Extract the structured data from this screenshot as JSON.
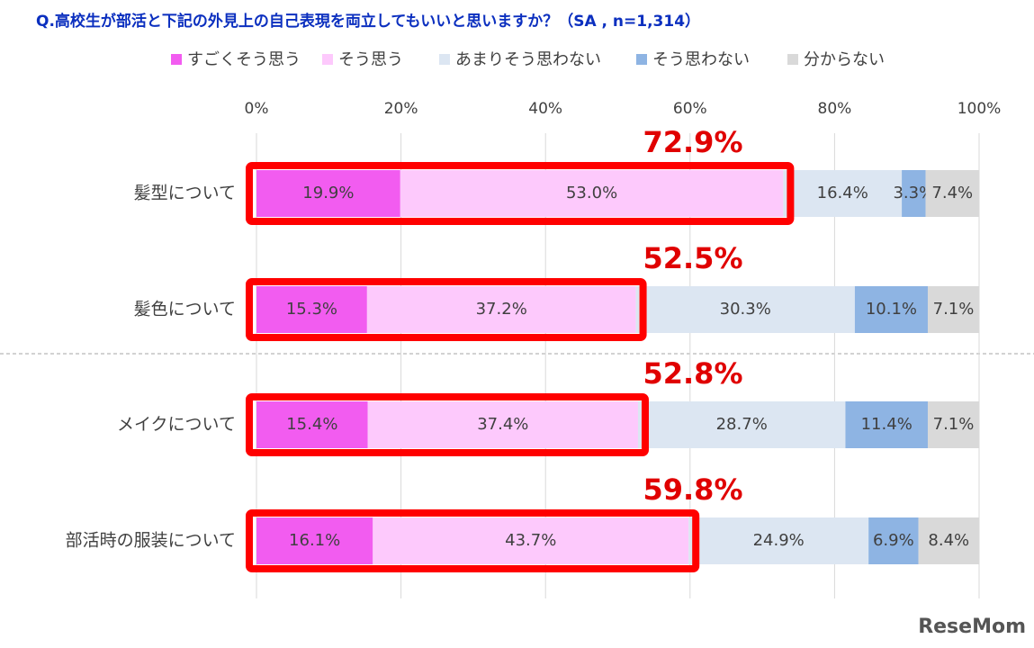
{
  "chart_data": {
    "type": "stacked-bar-horizontal",
    "title": "Q.高校生が部活と下記の外見上の自己表現を両立してもいいと思いますか？（SA , n=1,314）",
    "categories": [
      "髪型について",
      "髪色について",
      "メイクについて",
      "部活時の服装について"
    ],
    "series": [
      {
        "name": "すごくそう思う",
        "color": "#f25cf0",
        "values": [
          19.9,
          15.3,
          15.4,
          16.1
        ],
        "value_labels": [
          "19.9%",
          "15.3%",
          "15.4%",
          "16.1%"
        ]
      },
      {
        "name": "そう思う",
        "color": "#fdc9fc",
        "values": [
          53.0,
          37.2,
          37.4,
          43.7
        ],
        "value_labels": [
          "53.0%",
          "37.2%",
          "37.4%",
          "43.7%"
        ]
      },
      {
        "name": "あまりそう思わない",
        "color": "#dce6f2",
        "values": [
          16.4,
          30.3,
          28.7,
          24.9
        ],
        "value_labels": [
          "16.4%",
          "30.3%",
          "28.7%",
          "24.9%"
        ]
      },
      {
        "name": "そう思わない",
        "color": "#8eb4e3",
        "values": [
          3.3,
          10.1,
          11.4,
          6.9
        ],
        "value_labels": [
          "3.3%",
          "10.1%",
          "11.4%",
          "6.9%"
        ]
      },
      {
        "name": "分からない",
        "color": "#d9d9d9",
        "values": [
          7.4,
          7.1,
          7.1,
          8.4
        ],
        "value_labels": [
          "7.4%",
          "7.1%",
          "7.1%",
          "8.4%"
        ]
      }
    ],
    "annotations": [
      "72.9%",
      "52.5%",
      "52.8%",
      "59.8%"
    ],
    "xlim": [
      0,
      100
    ],
    "xticks": [
      {
        "value": 0,
        "label": "0%"
      },
      {
        "value": 20,
        "label": "20%"
      },
      {
        "value": 40,
        "label": "40%"
      },
      {
        "value": 60,
        "label": "60%"
      },
      {
        "value": 80,
        "label": "80%"
      },
      {
        "value": 100,
        "label": "100%"
      }
    ],
    "grid": true,
    "legend": "top",
    "watermark": "ReseMom"
  }
}
